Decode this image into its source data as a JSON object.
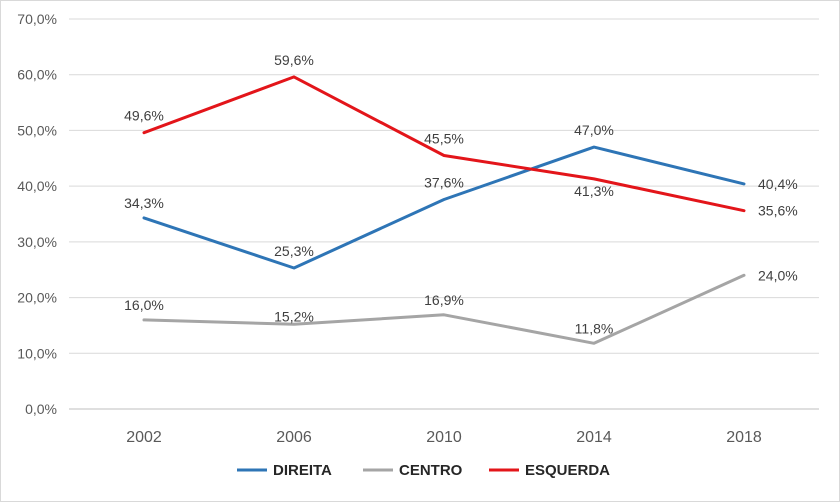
{
  "chart_data": {
    "type": "line",
    "title": "",
    "xlabel": "",
    "ylabel": "",
    "categories": [
      "2002",
      "2006",
      "2010",
      "2014",
      "2018"
    ],
    "ylim": [
      0,
      70
    ],
    "yticks": [
      0,
      10,
      20,
      30,
      40,
      50,
      60,
      70
    ],
    "ytick_labels": [
      "0,0%",
      "10,0%",
      "20,0%",
      "30,0%",
      "40,0%",
      "50,0%",
      "60,0%",
      "70,0%"
    ],
    "grid": true,
    "legend_position": "bottom",
    "series": [
      {
        "name": "DIREITA",
        "color": "#2e75b6",
        "values": [
          34.3,
          25.3,
          37.6,
          47.0,
          40.4
        ],
        "labels": [
          "34,3%",
          "25,3%",
          "37,6%",
          "47,0%",
          "40,4%"
        ]
      },
      {
        "name": "CENTRO",
        "color": "#a5a5a5",
        "values": [
          16.0,
          15.2,
          16.9,
          11.8,
          24.0
        ],
        "labels": [
          "16,0%",
          "15,2%",
          "16,9%",
          "11,8%",
          "24,0%"
        ]
      },
      {
        "name": "ESQUERDA",
        "color": "#e3151a",
        "values": [
          49.6,
          59.6,
          45.5,
          41.3,
          35.6
        ],
        "labels": [
          "49,6%",
          "59,6%",
          "45,5%",
          "41,3%",
          "35,6%"
        ]
      }
    ]
  }
}
